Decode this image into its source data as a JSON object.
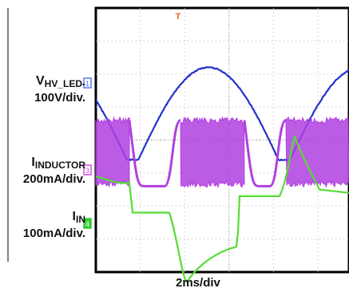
{
  "chart_data": {
    "type": "line",
    "title": "",
    "xlabel": "2ms/div",
    "grid": true,
    "trigger_marker": "T",
    "series": [
      {
        "name": "V",
        "name_sub": "HV_LED-",
        "scale": "100V/div.",
        "color": "#2233cc",
        "ground_marker": "1",
        "waveform": "rectified-sine",
        "levels_div": {
          "peak": 6.2,
          "trough": 3.4
        }
      },
      {
        "name": "I",
        "name_sub": "INDUCTOR",
        "scale": "200mA/div.",
        "color": "#b040e0",
        "ground_marker": "3",
        "waveform": "switching-envelope",
        "levels_div": {
          "high": 4.6,
          "low": 2.6
        }
      },
      {
        "name": "I",
        "name_sub": "IN",
        "scale": "100mA/div.",
        "color": "#55dd33",
        "ground_marker": "4",
        "waveform": "input-current",
        "levels_div": {
          "peak": 2.9,
          "trough": -0.2
        }
      }
    ]
  }
}
